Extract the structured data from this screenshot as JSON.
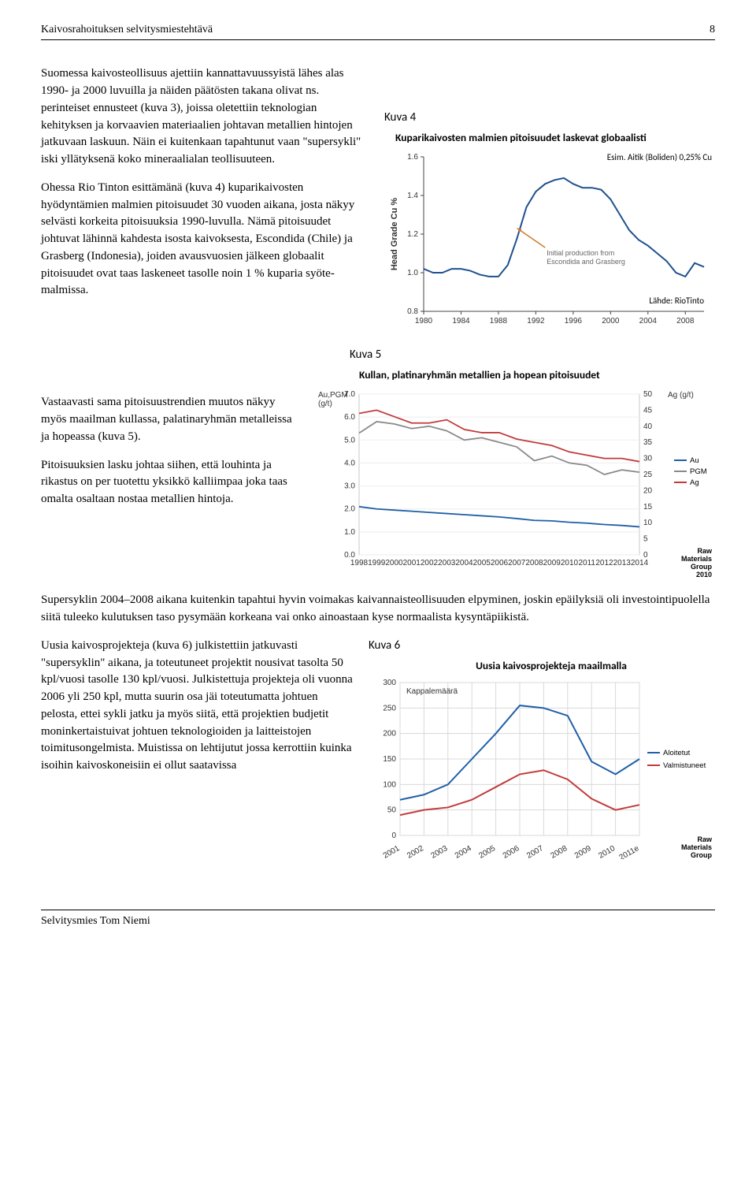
{
  "header": {
    "title": "Kaivosrahoituksen selvitysmiestehtävä",
    "page": "8"
  },
  "footer": {
    "author": "Selvitysmies Tom Niemi"
  },
  "paragraphs": {
    "p1": "Suomessa kaivosteollisuus ajettiin kannattavuussyistä lähes alas 1990- ja 2000 luvuilla ja näiden päätösten takana olivat ns. perinteiset ennusteet (kuva 3), joissa oletettiin teknologian kehityksen ja korvaavien materiaalien johtavan metallien hintojen jatkuvaan laskuun. Näin ei kuitenkaan tapahtunut vaan \"supersykli\" iski yllätyksenä koko mineraalialan teollisuuteen.",
    "p2": "Ohessa Rio Tinton esittämänä (kuva 4)  kuparikaivosten hyödyntämien malmien pitoisuudet 30 vuoden aikana, josta näkyy selvästi korkeita pitoisuuksia 1990-luvulla. Nämä pitoisuudet johtuvat lähinnä kahdesta isosta kaivoksesta, Escondida (Chile) ja Grasberg (Indonesia), joiden avausvuosien jälkeen globaalit pitoisuudet ovat taas laskeneet tasolle noin 1 % kuparia syöte-malmissa.",
    "p3": "Vastaavasti sama pitoisuustrendien muutos näkyy myös maailman kullassa, palatinaryhmän metalleissa ja hopeassa (kuva 5).",
    "p4": "Pitoisuuksien lasku johtaa siihen, että louhinta ja rikastus on per tuotettu yksikkö kalliimpaa joka taas omalta osaltaan nostaa metallien hintoja.",
    "p5": "Supersyklin 2004–2008 aikana kuitenkin tapahtui hyvin voimakas kaivannaisteollisuuden elpyminen, joskin epäilyksiä oli investointipuolella siitä tuleeko kulutuksen taso pysymään korkeana vai onko ainoastaan kyse normaalista kysyntäpiikistä.",
    "p6": "Uusia kaivosprojekteja (kuva 6) julkistettiin jatkuvasti \"supersyklin\" aikana, ja toteutuneet projektit nousivat tasolta 50 kpl/vuosi tasolle 130 kpl/vuosi. Julkistettuja projekteja oli vuonna 2006 yli 250 kpl, mutta suurin osa jäi toteutumatta johtuen pelosta, ettei sykli jatku ja myös siitä, että projektien budjetit moninkertaistuivat johtuen teknologioiden ja laitteistojen toimitusongelmista. Muistissa on lehtijutut jossa kerrottiin kuinka isoihin kaivoskoneisiin ei ollut saatavissa"
  },
  "fig4": {
    "label": "Kuva 4",
    "title": "Kuparikaivosten malmien pitoisuudet laskevat globaalisti",
    "esim_label": "Esim. Aitik (Boliden) 0,25% Cu",
    "type": "line",
    "ylabel": "Head Grade Cu %",
    "x_ticks": [
      1980,
      1984,
      1988,
      1992,
      1996,
      2000,
      2004,
      2008
    ],
    "y_ticks_labels": [
      "0.8",
      "1.0",
      "1.2",
      "1.4",
      "1.6"
    ],
    "ylim": [
      0.8,
      1.6
    ],
    "line_color": "#1f518f",
    "line_width": 2,
    "points": [
      [
        1980,
        1.02
      ],
      [
        1981,
        1.0
      ],
      [
        1982,
        1.0
      ],
      [
        1983,
        1.02
      ],
      [
        1984,
        1.02
      ],
      [
        1985,
        1.01
      ],
      [
        1986,
        0.99
      ],
      [
        1987,
        0.98
      ],
      [
        1988,
        0.98
      ],
      [
        1989,
        1.04
      ],
      [
        1990,
        1.18
      ],
      [
        1991,
        1.34
      ],
      [
        1992,
        1.42
      ],
      [
        1993,
        1.46
      ],
      [
        1994,
        1.48
      ],
      [
        1995,
        1.49
      ],
      [
        1996,
        1.46
      ],
      [
        1997,
        1.44
      ],
      [
        1998,
        1.44
      ],
      [
        1999,
        1.43
      ],
      [
        2000,
        1.38
      ],
      [
        2001,
        1.3
      ],
      [
        2002,
        1.22
      ],
      [
        2003,
        1.17
      ],
      [
        2004,
        1.14
      ],
      [
        2005,
        1.1
      ],
      [
        2006,
        1.06
      ],
      [
        2007,
        1.0
      ],
      [
        2008,
        0.98
      ],
      [
        2009,
        1.05
      ],
      [
        2010,
        1.03
      ]
    ],
    "callout_text": "Initial production from Escondida and Grasberg",
    "callout_from": [
      1993,
      1.13
    ],
    "callout_to": [
      1990,
      1.23
    ],
    "arrow_color": "#d07b28",
    "source": "Lähde: RioTinto"
  },
  "fig5": {
    "label": "Kuva 5",
    "title": "Kullan, platinaryhmän metallien ja hopean pitoisuudet",
    "type": "line",
    "left_axis_label": "Au,PGM (g/t)",
    "right_axis_label": "Ag (g/t)",
    "x_ticks": [
      1998,
      1999,
      2000,
      2001,
      2002,
      2003,
      2004,
      2005,
      2006,
      2007,
      2008,
      2009,
      2010,
      2011,
      2012,
      2013,
      2014
    ],
    "left_y_ticks": [
      "0.0",
      "1.0",
      "2.0",
      "3.0",
      "4.0",
      "5.0",
      "6.0",
      "7.0"
    ],
    "right_y_ticks": [
      "0",
      "5",
      "10",
      "15",
      "20",
      "25",
      "30",
      "35",
      "40",
      "45",
      "50"
    ],
    "left_ylim": [
      0,
      7
    ],
    "right_ylim": [
      0,
      50
    ],
    "series": {
      "Au": {
        "color": "#1f5fa8",
        "points": [
          [
            1998,
            2.1
          ],
          [
            1999,
            2.0
          ],
          [
            2000,
            1.95
          ],
          [
            2001,
            1.9
          ],
          [
            2002,
            1.85
          ],
          [
            2003,
            1.8
          ],
          [
            2004,
            1.75
          ],
          [
            2005,
            1.7
          ],
          [
            2006,
            1.65
          ],
          [
            2007,
            1.58
          ],
          [
            2008,
            1.5
          ],
          [
            2009,
            1.48
          ],
          [
            2010,
            1.42
          ],
          [
            2011,
            1.38
          ],
          [
            2012,
            1.32
          ],
          [
            2013,
            1.28
          ],
          [
            2014,
            1.22
          ]
        ]
      },
      "PGM": {
        "color": "#8a8a8a",
        "points": [
          [
            1998,
            5.3
          ],
          [
            1999,
            5.8
          ],
          [
            2000,
            5.7
          ],
          [
            2001,
            5.5
          ],
          [
            2002,
            5.6
          ],
          [
            2003,
            5.4
          ],
          [
            2004,
            5.0
          ],
          [
            2005,
            5.1
          ],
          [
            2006,
            4.9
          ],
          [
            2007,
            4.7
          ],
          [
            2008,
            4.1
          ],
          [
            2009,
            4.3
          ],
          [
            2010,
            4.0
          ],
          [
            2011,
            3.9
          ],
          [
            2012,
            3.5
          ],
          [
            2013,
            3.7
          ],
          [
            2014,
            3.6
          ]
        ]
      },
      "Ag": {
        "color": "#c23b3b",
        "points_right": [
          [
            1998,
            44
          ],
          [
            1999,
            45
          ],
          [
            2000,
            43
          ],
          [
            2001,
            41
          ],
          [
            2002,
            41
          ],
          [
            2003,
            42
          ],
          [
            2004,
            39
          ],
          [
            2005,
            38
          ],
          [
            2006,
            38
          ],
          [
            2007,
            36
          ],
          [
            2008,
            35
          ],
          [
            2009,
            34
          ],
          [
            2010,
            32
          ],
          [
            2011,
            31
          ],
          [
            2012,
            30
          ],
          [
            2013,
            30
          ],
          [
            2014,
            29
          ]
        ]
      }
    },
    "legend": [
      {
        "label": "Au",
        "color": "#1f5fa8"
      },
      {
        "label": "PGM",
        "color": "#8a8a8a"
      },
      {
        "label": "Ag",
        "color": "#c23b3b"
      }
    ],
    "source_block": "Raw Materials Group 2010"
  },
  "fig6": {
    "label": "Kuva 6",
    "title": "Uusia kaivosprojekteja maailmalla",
    "type": "line",
    "y_label_inside": "Kappalemäärä",
    "x_labels": [
      "2001",
      "2002",
      "2003",
      "2004",
      "2005",
      "2006",
      "2007",
      "2008",
      "2009",
      "2010",
      "2011e"
    ],
    "y_ticks": [
      0,
      50,
      100,
      150,
      200,
      250,
      300
    ],
    "ylim": [
      0,
      300
    ],
    "grid_color": "#d9d9d9",
    "series": {
      "Aloitetut": {
        "color": "#1f5fa8",
        "points": [
          [
            0,
            70
          ],
          [
            1,
            80
          ],
          [
            2,
            100
          ],
          [
            3,
            150
          ],
          [
            4,
            200
          ],
          [
            5,
            255
          ],
          [
            6,
            250
          ],
          [
            7,
            235
          ],
          [
            8,
            145
          ],
          [
            9,
            120
          ],
          [
            10,
            150
          ]
        ]
      },
      "Valmistuneet": {
        "color": "#c23b3b",
        "points": [
          [
            0,
            40
          ],
          [
            1,
            50
          ],
          [
            2,
            55
          ],
          [
            3,
            70
          ],
          [
            4,
            95
          ],
          [
            5,
            120
          ],
          [
            6,
            128
          ],
          [
            7,
            110
          ],
          [
            8,
            72
          ],
          [
            9,
            50
          ],
          [
            10,
            60
          ]
        ]
      }
    },
    "legend": [
      {
        "label": "Aloitetut",
        "color": "#1f5fa8"
      },
      {
        "label": "Valmistuneet",
        "color": "#c23b3b"
      }
    ],
    "source_block": "Raw Materials Group"
  }
}
